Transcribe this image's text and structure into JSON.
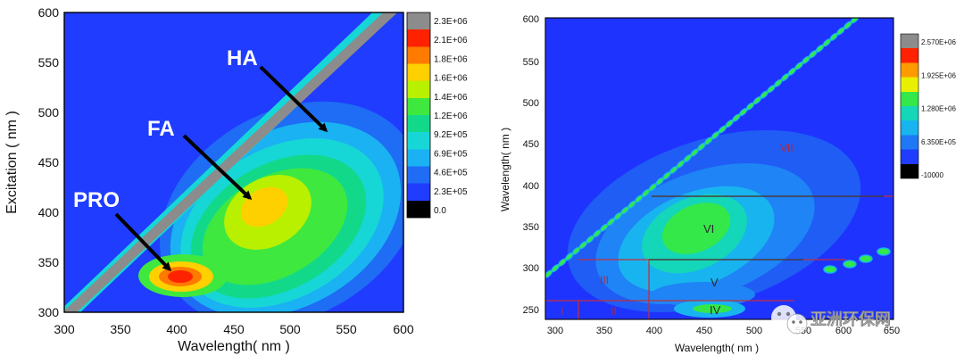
{
  "chart_data": [
    {
      "type": "heatmap",
      "title": "",
      "xlabel": "Wavelength( nm )",
      "ylabel": "Excitation ( nm )",
      "xlim": [
        300,
        600
      ],
      "ylim": [
        300,
        600
      ],
      "xticks": [
        "300",
        "350",
        "400",
        "450",
        "500",
        "550",
        "600"
      ],
      "yticks": [
        "300",
        "350",
        "400",
        "450",
        "500",
        "550",
        "600"
      ],
      "colorbar": {
        "ticks": [
          "2.3E+06",
          "2.1E+06",
          "1.8E+06",
          "1.6E+06",
          "1.4E+06",
          "1.2E+06",
          "9.2E+05",
          "6.9E+05",
          "4.6E+05",
          "2.3E+05",
          "0.0"
        ],
        "colors": [
          "#8c8c8c",
          "#ff2200",
          "#ff7a00",
          "#ffd000",
          "#b8f000",
          "#3ee83e",
          "#12d98a",
          "#16d6d6",
          "#1ab2f2",
          "#1f6cf5",
          "#1f3cff",
          "#000000"
        ]
      },
      "background_color": "#1f3cff",
      "rayleigh_band": {
        "color": "#8c8c8c",
        "from": [
          300,
          305
        ],
        "to": [
          600,
          612
        ]
      },
      "peaks": [
        {
          "ex": 335,
          "em": 400,
          "level": "max"
        },
        {
          "ex": 400,
          "em": 480,
          "level": "high"
        }
      ],
      "annotations": [
        {
          "text": "HA",
          "label_at": [
            273,
            567
          ],
          "arrow_to": [
            530,
            480
          ]
        },
        {
          "text": "FA",
          "label_at": [
            480,
            168
          ],
          "arrow_to": [
            475,
            415
          ]
        },
        {
          "text": "PRO",
          "label_at": [
            402,
            103
          ],
          "arrow_to": [
            395,
            338
          ]
        }
      ]
    },
    {
      "type": "heatmap",
      "title": "",
      "xlabel": "Wavelength( nm )",
      "ylabel": "Wavelength( nm )",
      "xlim": [
        290,
        640
      ],
      "ylim": [
        235,
        600
      ],
      "xticks": [
        "300",
        "350",
        "400",
        "450",
        "500",
        "550",
        "600",
        "650"
      ],
      "yticks": [
        "250",
        "300",
        "350",
        "400",
        "450",
        "500",
        "550",
        "600"
      ],
      "colorbar": {
        "ticks": [
          "2.570E+06",
          "1.925E+06",
          "1.280E+06",
          "6.350E+05",
          "-10000"
        ],
        "colors": [
          "#8c8c8c",
          "#ff2200",
          "#ff9a00",
          "#e8f000",
          "#34e84a",
          "#14d6b8",
          "#18b4f0",
          "#1f78f5",
          "#1f3cff",
          "#000000"
        ]
      },
      "background_color": "#1f33ff",
      "regions": [
        {
          "label": "I",
          "em": [
            290,
            325
          ],
          "ex": [
            235,
            260
          ]
        },
        {
          "label": "II",
          "em": [
            325,
            395
          ],
          "ex": [
            235,
            260
          ]
        },
        {
          "label": "III",
          "em": [
            290,
            395
          ],
          "ex": [
            260,
            310
          ]
        },
        {
          "label": "IV",
          "em": [
            395,
            535
          ],
          "ex": [
            235,
            260
          ]
        },
        {
          "label": "V",
          "em": [
            395,
            590
          ],
          "ex": [
            260,
            310
          ]
        },
        {
          "label": "VI",
          "em": [
            395,
            640
          ],
          "ex": [
            310,
            385
          ]
        },
        {
          "label": "VII",
          "em": [
            395,
            640
          ],
          "ex": [
            385,
            600
          ]
        }
      ]
    }
  ],
  "watermark": {
    "text": "亚洲环保网"
  }
}
